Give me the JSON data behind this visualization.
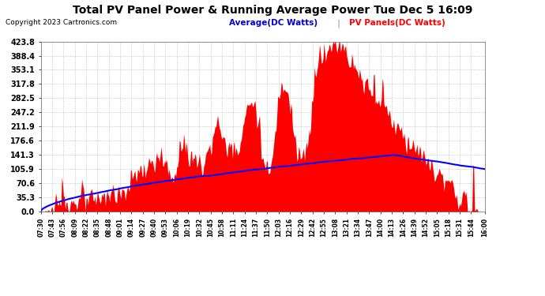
{
  "title": "Total PV Panel Power & Running Average Power Tue Dec 5 16:09",
  "copyright": "Copyright 2023 Cartronics.com",
  "legend_average": "Average(DC Watts)",
  "legend_pv": "PV Panels(DC Watts)",
  "ylabel_ticks": [
    0.0,
    35.3,
    70.6,
    105.9,
    141.3,
    176.6,
    211.9,
    247.2,
    282.5,
    317.8,
    353.1,
    388.4,
    423.8
  ],
  "ymax": 423.8,
  "ymin": 0.0,
  "background_color": "#ffffff",
  "plot_bg_color": "#ffffff",
  "grid_color": "#aaaaaa",
  "pv_color": "#ff0000",
  "avg_color": "#0000ff",
  "title_color": "#000000",
  "copyright_color": "#000000",
  "legend_avg_color": "#0000cc",
  "legend_pv_color": "#ff0000",
  "x_tick_labels": [
    "07:30",
    "07:43",
    "07:56",
    "08:09",
    "08:22",
    "08:35",
    "08:48",
    "09:01",
    "09:14",
    "09:27",
    "09:40",
    "09:53",
    "10:06",
    "10:19",
    "10:32",
    "10:45",
    "10:58",
    "11:11",
    "11:24",
    "11:37",
    "11:50",
    "12:03",
    "12:16",
    "12:29",
    "12:42",
    "12:55",
    "13:08",
    "13:21",
    "13:34",
    "13:47",
    "14:00",
    "14:13",
    "14:26",
    "14:39",
    "14:52",
    "15:05",
    "15:18",
    "15:31",
    "15:44",
    "16:00"
  ]
}
